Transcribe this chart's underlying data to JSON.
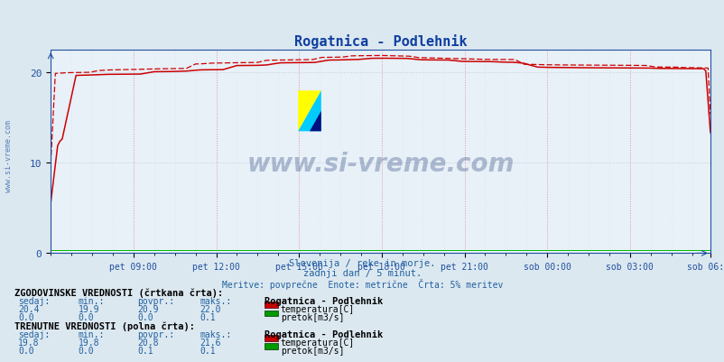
{
  "title": "Rogatnica - Podlehnik",
  "background_color": "#dce8f0",
  "plot_bg_color": "#e8f0f8",
  "grid_color_major": "#c8d8e8",
  "grid_color_minor": "#d8e4f0",
  "title_color": "#1040a0",
  "axis_color": "#2050a0",
  "text_color": "#2060a0",
  "spine_color": "#2050a0",
  "subtitle_lines": [
    "Slovenija / reke in morje.",
    "zadnji dan / 5 minut.",
    "Meritve: povprečne  Enote: metrične  Črta: 5% meritev"
  ],
  "xlabel_ticks": [
    "pet 09:00",
    "pet 12:00",
    "pet 15:00",
    "pet 18:00",
    "pet 21:00",
    "sob 00:00",
    "sob 03:00",
    "sob 06:00"
  ],
  "tick_x": [
    36,
    72,
    108,
    144,
    180,
    216,
    252,
    287
  ],
  "ylabel_ticks": [
    0,
    10,
    20
  ],
  "ylim": [
    0,
    22.5
  ],
  "xlim": [
    0,
    287
  ],
  "watermark_text": "www.si-vreme.com",
  "watermark_color": "#1a3870",
  "watermark_alpha": 0.3,
  "side_label": "www.si-vreme.com",
  "hist_label": "ZGODOVINSKE VREDNOSTI (črtkana črta):",
  "cur_label": "TRENUTNE VREDNOSTI (polna črta):",
  "cols_header": [
    "sedaj:",
    "min.:",
    "povpr.:",
    "maks.:",
    "Rogatnica - Podlehnik"
  ],
  "hist_temp": [
    20.4,
    19.9,
    20.9,
    22.0
  ],
  "hist_flow": [
    0.0,
    0.0,
    0.0,
    0.1
  ],
  "cur_temp": [
    19.8,
    19.8,
    20.8,
    21.6
  ],
  "cur_flow": [
    0.0,
    0.0,
    0.1,
    0.1
  ],
  "temp_color": "#cc0000",
  "flow_color": "#009900",
  "flow_color_cur": "#00bb00",
  "n_points": 288
}
